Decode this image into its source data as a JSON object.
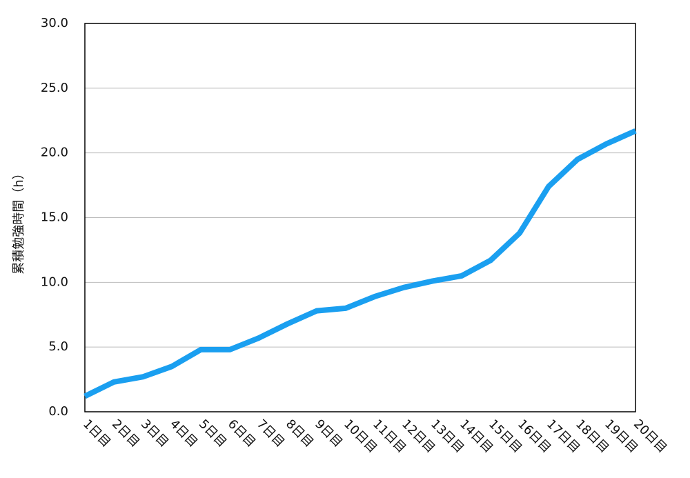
{
  "chart_data": {
    "type": "line",
    "y_label": "累積勉強時間（h）",
    "categories": [
      "1日目",
      "2日目",
      "3日目",
      "4日目",
      "5日目",
      "6日目",
      "7日目",
      "8日目",
      "9日目",
      "10日目",
      "11日目",
      "12日目",
      "13日目",
      "14日目",
      "15日目",
      "16日目",
      "17日目",
      "18日目",
      "19日目",
      "20日目"
    ],
    "series": [
      {
        "name": "累積勉強時間",
        "color": "#1a9ff0",
        "values": [
          1.2,
          2.3,
          2.7,
          3.5,
          4.8,
          4.8,
          5.7,
          6.8,
          7.8,
          8.0,
          8.9,
          9.6,
          10.1,
          10.5,
          11.7,
          13.8,
          17.4,
          19.5,
          20.7,
          21.7
        ]
      }
    ],
    "ylim": [
      0,
      30
    ],
    "yticks": [
      {
        "value": 0,
        "label": "0.0"
      },
      {
        "value": 5,
        "label": "5.0"
      },
      {
        "value": 10,
        "label": "10.0"
      },
      {
        "value": 15,
        "label": "15.0"
      },
      {
        "value": 20,
        "label": "20.0"
      },
      {
        "value": 25,
        "label": "25.0"
      },
      {
        "value": 30,
        "label": "30.0"
      }
    ],
    "grid": true
  }
}
